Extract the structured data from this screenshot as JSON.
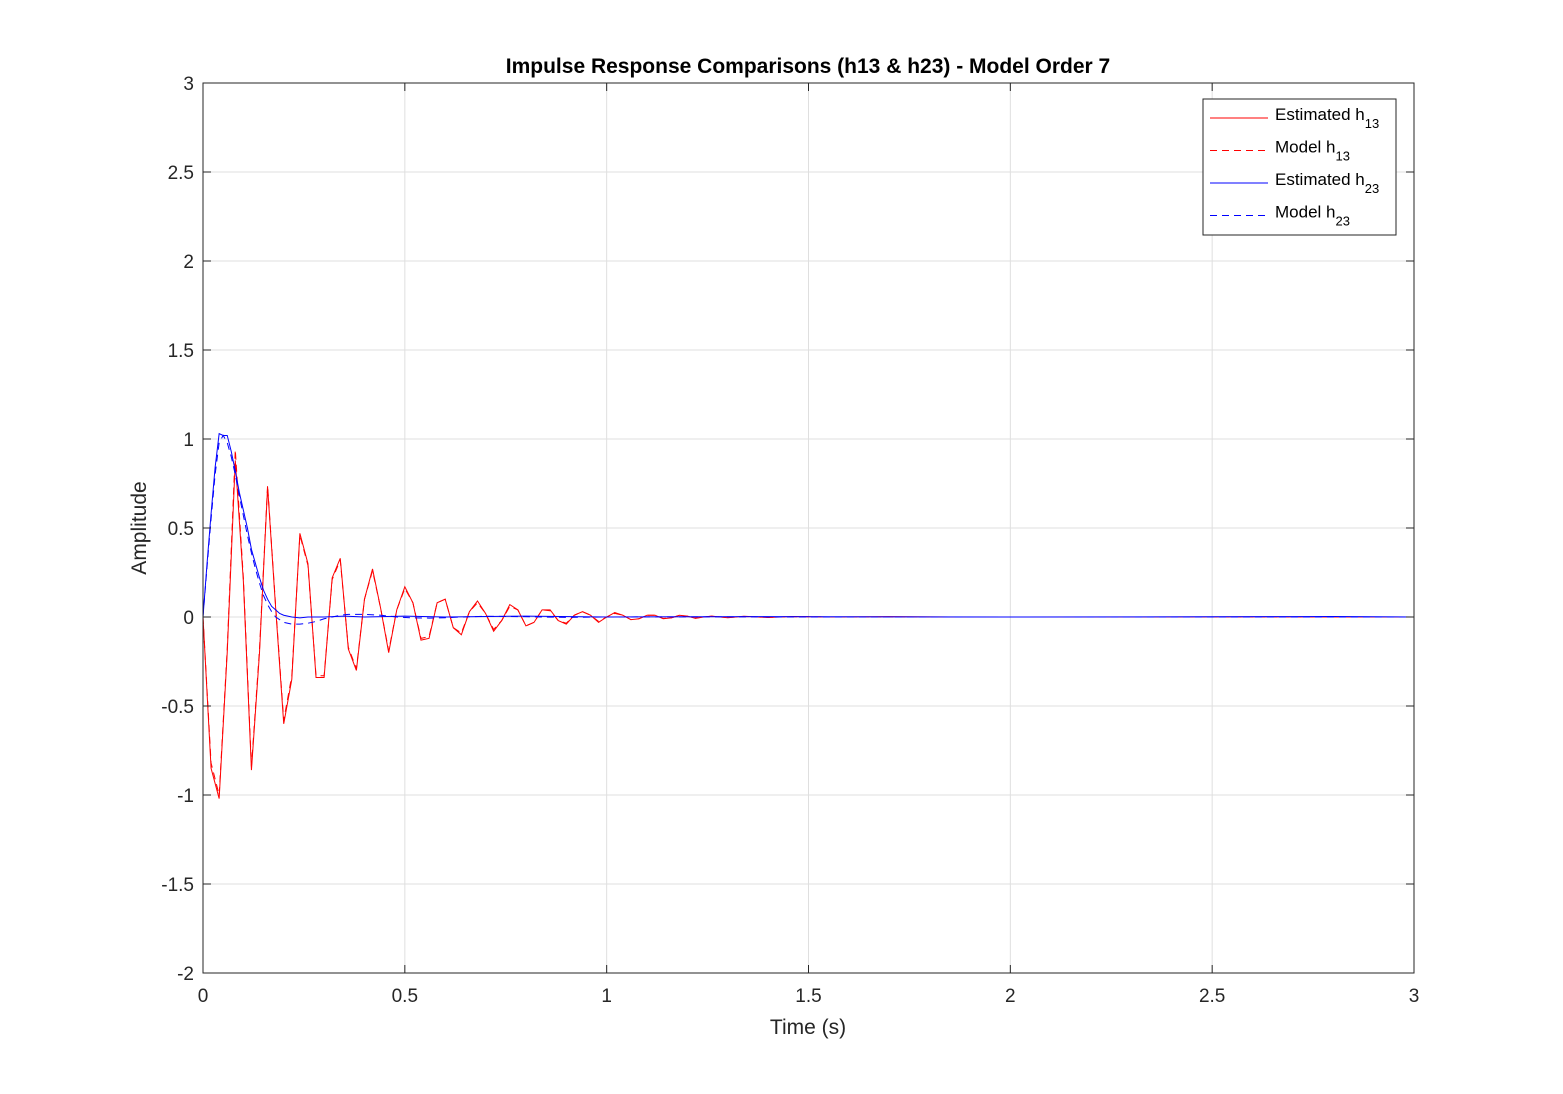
{
  "chart_data": {
    "type": "line",
    "title": "Impulse Response Comparisons (h13 & h23) - Model Order 7",
    "xlabel": "Time (s)",
    "ylabel": "Amplitude",
    "xlim": [
      0,
      3
    ],
    "ylim": [
      -2,
      3
    ],
    "x_ticks": [
      "0",
      "0.5",
      "1",
      "1.5",
      "2",
      "2.5",
      "3"
    ],
    "y_ticks": [
      "-2",
      "-1.5",
      "-1",
      "-0.5",
      "0",
      "0.5",
      "1",
      "1.5",
      "2",
      "2.5",
      "3"
    ],
    "grid": true,
    "legend_position": "top-right",
    "legend": [
      {
        "base": "Estimated h",
        "sub": "13",
        "color": "#ff0000",
        "style": "solid"
      },
      {
        "base": "Model h",
        "sub": "13",
        "color": "#ff0000",
        "style": "dashed"
      },
      {
        "base": "Estimated h",
        "sub": "23",
        "color": "#0000ff",
        "style": "solid"
      },
      {
        "base": "Model h",
        "sub": "23",
        "color": "#0000ff",
        "style": "dashed"
      }
    ],
    "series": [
      {
        "name": "Estimated h13",
        "color": "#ff0000",
        "style": "solid",
        "points": [
          [
            0,
            0
          ],
          [
            0.02,
            -0.85
          ],
          [
            0.04,
            -1.02
          ],
          [
            0.06,
            -0.2
          ],
          [
            0.08,
            0.88
          ],
          [
            0.1,
            0.2
          ],
          [
            0.12,
            -0.86
          ],
          [
            0.14,
            -0.2
          ],
          [
            0.16,
            0.73
          ],
          [
            0.18,
            0.05
          ],
          [
            0.2,
            -0.6
          ],
          [
            0.22,
            -0.35
          ],
          [
            0.24,
            0.47
          ],
          [
            0.26,
            0.3
          ],
          [
            0.28,
            -0.34
          ],
          [
            0.3,
            -0.34
          ],
          [
            0.32,
            0.22
          ],
          [
            0.34,
            0.33
          ],
          [
            0.36,
            -0.18
          ],
          [
            0.38,
            -0.3
          ],
          [
            0.4,
            0.1
          ],
          [
            0.42,
            0.27
          ],
          [
            0.44,
            0.05
          ],
          [
            0.46,
            -0.2
          ],
          [
            0.48,
            0.04
          ],
          [
            0.5,
            0.17
          ],
          [
            0.52,
            0.08
          ],
          [
            0.54,
            -0.13
          ],
          [
            0.56,
            -0.12
          ],
          [
            0.58,
            0.08
          ],
          [
            0.6,
            0.1
          ],
          [
            0.62,
            -0.06
          ],
          [
            0.64,
            -0.1
          ],
          [
            0.66,
            0.03
          ],
          [
            0.68,
            0.09
          ],
          [
            0.7,
            0.02
          ],
          [
            0.72,
            -0.08
          ],
          [
            0.74,
            -0.02
          ],
          [
            0.76,
            0.07
          ],
          [
            0.78,
            0.04
          ],
          [
            0.8,
            -0.05
          ],
          [
            0.82,
            -0.03
          ],
          [
            0.84,
            0.04
          ],
          [
            0.86,
            0.04
          ],
          [
            0.88,
            -0.02
          ],
          [
            0.9,
            -0.04
          ],
          [
            0.92,
            0.01
          ],
          [
            0.94,
            0.03
          ],
          [
            0.96,
            0.01
          ],
          [
            0.98,
            -0.03
          ],
          [
            1.0,
            0.0
          ],
          [
            1.02,
            0.025
          ],
          [
            1.04,
            0.01
          ],
          [
            1.06,
            -0.015
          ],
          [
            1.08,
            -0.01
          ],
          [
            1.1,
            0.01
          ],
          [
            1.12,
            0.01
          ],
          [
            1.14,
            -0.01
          ],
          [
            1.16,
            -0.005
          ],
          [
            1.18,
            0.01
          ],
          [
            1.2,
            0.005
          ],
          [
            1.22,
            -0.008
          ],
          [
            1.24,
            0.0
          ],
          [
            1.26,
            0.005
          ],
          [
            1.3,
            -0.004
          ],
          [
            1.34,
            0.004
          ],
          [
            1.4,
            -0.003
          ],
          [
            1.46,
            0.003
          ],
          [
            1.55,
            0.0
          ],
          [
            1.7,
            0.002
          ],
          [
            1.85,
            0.0
          ],
          [
            2.0,
            0.0
          ],
          [
            2.3,
            0.0
          ],
          [
            2.6,
            0.001
          ],
          [
            2.8,
            0.0
          ],
          [
            3.0,
            0.0
          ]
        ]
      },
      {
        "name": "Model h13",
        "color": "#ff0000",
        "style": "dashed",
        "points": [
          [
            0,
            0
          ],
          [
            0.02,
            -0.82
          ],
          [
            0.04,
            -1.0
          ],
          [
            0.06,
            -0.18
          ],
          [
            0.08,
            0.94
          ],
          [
            0.1,
            0.22
          ],
          [
            0.12,
            -0.84
          ],
          [
            0.14,
            -0.18
          ],
          [
            0.16,
            0.74
          ],
          [
            0.18,
            0.06
          ],
          [
            0.2,
            -0.58
          ],
          [
            0.22,
            -0.33
          ],
          [
            0.24,
            0.46
          ],
          [
            0.26,
            0.29
          ],
          [
            0.28,
            -0.33
          ],
          [
            0.3,
            -0.33
          ],
          [
            0.32,
            0.21
          ],
          [
            0.34,
            0.32
          ],
          [
            0.36,
            -0.17
          ],
          [
            0.38,
            -0.29
          ],
          [
            0.4,
            0.1
          ],
          [
            0.42,
            0.26
          ],
          [
            0.44,
            0.05
          ],
          [
            0.46,
            -0.19
          ],
          [
            0.48,
            0.04
          ],
          [
            0.5,
            0.16
          ],
          [
            0.52,
            0.08
          ],
          [
            0.54,
            -0.12
          ],
          [
            0.56,
            -0.11
          ],
          [
            0.58,
            0.08
          ],
          [
            0.6,
            0.1
          ],
          [
            0.62,
            -0.06
          ],
          [
            0.64,
            -0.09
          ],
          [
            0.66,
            0.03
          ],
          [
            0.68,
            0.08
          ],
          [
            0.7,
            0.02
          ],
          [
            0.72,
            -0.07
          ],
          [
            0.74,
            -0.02
          ],
          [
            0.76,
            0.06
          ],
          [
            0.78,
            0.04
          ],
          [
            0.8,
            -0.05
          ],
          [
            0.82,
            -0.03
          ],
          [
            0.84,
            0.04
          ],
          [
            0.86,
            0.035
          ],
          [
            0.88,
            -0.02
          ],
          [
            0.9,
            -0.035
          ],
          [
            0.92,
            0.01
          ],
          [
            0.94,
            0.03
          ],
          [
            0.96,
            0.01
          ],
          [
            0.98,
            -0.025
          ],
          [
            1.0,
            0.0
          ],
          [
            1.02,
            0.02
          ],
          [
            1.04,
            0.01
          ],
          [
            1.06,
            -0.015
          ],
          [
            1.08,
            -0.01
          ],
          [
            1.1,
            0.01
          ],
          [
            1.12,
            0.01
          ],
          [
            1.14,
            -0.008
          ],
          [
            1.16,
            -0.005
          ],
          [
            1.18,
            0.008
          ],
          [
            1.2,
            0.004
          ],
          [
            1.22,
            -0.006
          ],
          [
            1.24,
            0.0
          ],
          [
            1.26,
            0.004
          ],
          [
            1.3,
            -0.003
          ],
          [
            1.34,
            0.003
          ],
          [
            1.4,
            -0.002
          ],
          [
            1.46,
            0.002
          ],
          [
            1.55,
            0.0
          ],
          [
            1.7,
            0.0
          ],
          [
            2.0,
            0.0
          ],
          [
            3.0,
            0.0
          ]
        ]
      },
      {
        "name": "Estimated h23",
        "color": "#0000ff",
        "style": "solid",
        "points": [
          [
            0,
            0
          ],
          [
            0.01,
            0.3
          ],
          [
            0.02,
            0.58
          ],
          [
            0.03,
            0.84
          ],
          [
            0.04,
            1.03
          ],
          [
            0.05,
            1.02
          ],
          [
            0.06,
            1.02
          ],
          [
            0.07,
            0.93
          ],
          [
            0.08,
            0.82
          ],
          [
            0.09,
            0.7
          ],
          [
            0.1,
            0.6
          ],
          [
            0.11,
            0.5
          ],
          [
            0.12,
            0.38
          ],
          [
            0.13,
            0.3
          ],
          [
            0.14,
            0.22
          ],
          [
            0.15,
            0.15
          ],
          [
            0.16,
            0.1
          ],
          [
            0.17,
            0.06
          ],
          [
            0.18,
            0.04
          ],
          [
            0.19,
            0.02
          ],
          [
            0.2,
            0.01
          ],
          [
            0.22,
            0.0
          ],
          [
            0.24,
            -0.005
          ],
          [
            0.26,
            0.0
          ],
          [
            0.3,
            0.0
          ],
          [
            0.35,
            0.005
          ],
          [
            0.4,
            0.0
          ],
          [
            0.5,
            0.005
          ],
          [
            0.6,
            0.0
          ],
          [
            0.8,
            0.005
          ],
          [
            1.0,
            0.0
          ],
          [
            1.4,
            0.002
          ],
          [
            2.0,
            0.0
          ],
          [
            2.7,
            0.002
          ],
          [
            2.8,
            0.003
          ],
          [
            3.0,
            0.0
          ]
        ]
      },
      {
        "name": "Model h23",
        "color": "#0000ff",
        "style": "dashed",
        "points": [
          [
            0,
            0
          ],
          [
            0.01,
            0.28
          ],
          [
            0.02,
            0.55
          ],
          [
            0.03,
            0.8
          ],
          [
            0.04,
            0.98
          ],
          [
            0.05,
            1.02
          ],
          [
            0.06,
            0.98
          ],
          [
            0.07,
            0.9
          ],
          [
            0.08,
            0.8
          ],
          [
            0.09,
            0.68
          ],
          [
            0.1,
            0.57
          ],
          [
            0.11,
            0.46
          ],
          [
            0.12,
            0.36
          ],
          [
            0.13,
            0.27
          ],
          [
            0.14,
            0.19
          ],
          [
            0.15,
            0.12
          ],
          [
            0.16,
            0.07
          ],
          [
            0.17,
            0.03
          ],
          [
            0.18,
            0.0
          ],
          [
            0.2,
            -0.03
          ],
          [
            0.22,
            -0.04
          ],
          [
            0.24,
            -0.04
          ],
          [
            0.26,
            -0.035
          ],
          [
            0.28,
            -0.025
          ],
          [
            0.3,
            -0.01
          ],
          [
            0.32,
            0.0
          ],
          [
            0.34,
            0.01
          ],
          [
            0.36,
            0.015
          ],
          [
            0.4,
            0.015
          ],
          [
            0.44,
            0.01
          ],
          [
            0.48,
            0.0
          ],
          [
            0.52,
            -0.005
          ],
          [
            0.56,
            -0.006
          ],
          [
            0.6,
            -0.004
          ],
          [
            0.64,
            0.0
          ],
          [
            0.7,
            0.004
          ],
          [
            0.76,
            0.003
          ],
          [
            0.84,
            0.0
          ],
          [
            0.9,
            -0.002
          ],
          [
            1.0,
            0.0
          ],
          [
            1.2,
            0.001
          ],
          [
            1.5,
            0.0
          ],
          [
            2.0,
            0.0
          ],
          [
            2.5,
            0.0
          ],
          [
            3.0,
            0.0
          ]
        ]
      }
    ]
  }
}
